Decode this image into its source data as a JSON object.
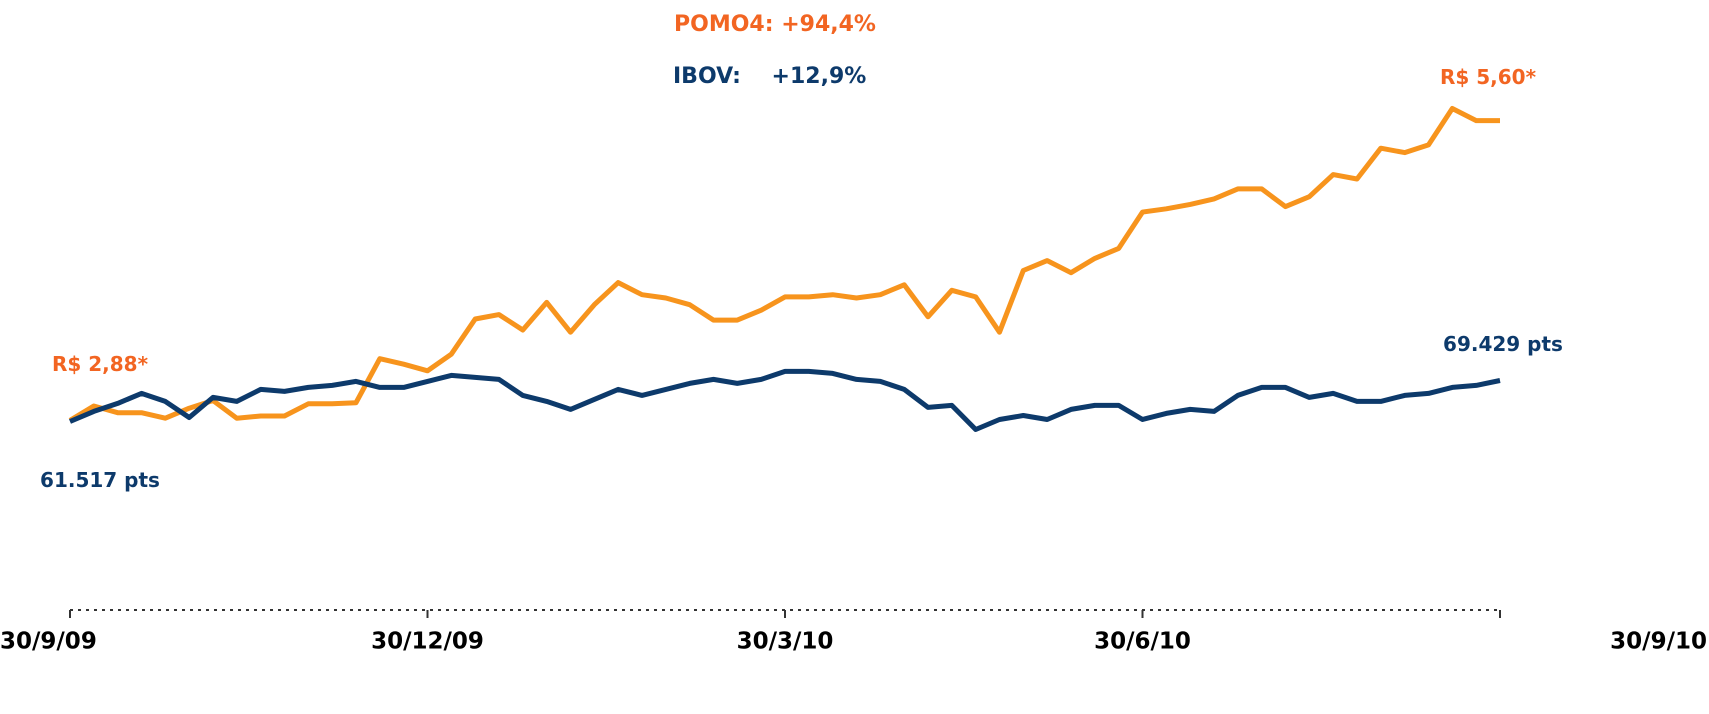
{
  "chart_data": {
    "type": "line",
    "annotations": [
      {
        "text": "POMO4: +94,4%",
        "color": "#f26522"
      },
      {
        "text": "IBOV:    +12,9%",
        "color": "#0d3a6b"
      }
    ],
    "xlim": [
      0,
      60
    ],
    "xticks": [
      {
        "value": 0,
        "label": "30/9/09"
      },
      {
        "value": 15,
        "label": "30/12/09"
      },
      {
        "value": 30,
        "label": "30/3/10"
      },
      {
        "value": 45,
        "label": "30/6/10"
      },
      {
        "value": 60,
        "label": "30/9/10"
      }
    ],
    "ylim": [
      1.25,
      6.15
    ],
    "y2lim": [
      27000,
      131400
    ],
    "series": [
      {
        "name": "POMO4",
        "color": "#f7941d",
        "label_color": "#f26522",
        "start_label": "R$ 2,88*",
        "end_label": "R$ 5,60*",
        "values": [
          2.88,
          3.01,
          2.95,
          2.95,
          2.9,
          2.99,
          3.06,
          2.9,
          2.92,
          2.92,
          3.03,
          3.03,
          3.04,
          3.44,
          3.39,
          3.33,
          3.48,
          3.8,
          3.84,
          3.7,
          3.95,
          3.68,
          3.93,
          4.13,
          4.02,
          3.99,
          3.93,
          3.79,
          3.79,
          3.88,
          4.0,
          4.0,
          4.02,
          3.99,
          4.02,
          4.11,
          3.82,
          4.06,
          4.0,
          3.68,
          4.24,
          4.33,
          4.22,
          4.35,
          4.44,
          4.77,
          4.8,
          4.84,
          4.89,
          4.98,
          4.98,
          4.82,
          4.91,
          5.11,
          5.07,
          5.35,
          5.31,
          5.38,
          5.71,
          5.6,
          5.6
        ]
      },
      {
        "name": "IBOV",
        "color": "#0d3a6b",
        "label_color": "#0d3a6b",
        "axis": "y2",
        "start_label": "61.517 pts",
        "end_label": "69.429 pts",
        "values": [
          61517,
          63454,
          65003,
          66940,
          65391,
          62292,
          66166,
          65391,
          67715,
          67328,
          68103,
          68490,
          69265,
          68103,
          68103,
          69265,
          70427,
          70040,
          69652,
          66553,
          65391,
          63841,
          65778,
          67715,
          66553,
          67715,
          68877,
          69652,
          68877,
          69652,
          71202,
          71202,
          70814,
          69652,
          69265,
          67715,
          64229,
          64616,
          59967,
          61904,
          62679,
          61904,
          63841,
          64616,
          64616,
          61904,
          63067,
          63841,
          63454,
          66553,
          68103,
          68103,
          66166,
          66940,
          65391,
          65391,
          66553,
          66940,
          68103,
          68490,
          69429
        ]
      }
    ]
  }
}
